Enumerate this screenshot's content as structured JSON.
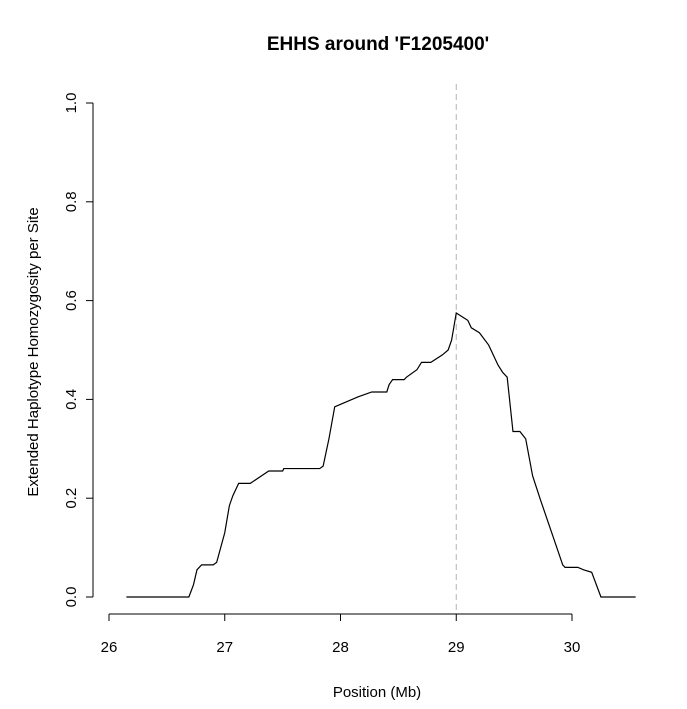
{
  "chart_data": {
    "type": "line",
    "title": "EHHS around 'F1205400'",
    "xlabel": "Position (Mb)",
    "ylabel": "Extended Haplotype Homozygosity per Site",
    "xlim": [
      26,
      30.55
    ],
    "ylim": [
      0,
      1
    ],
    "xticks": [
      26,
      27,
      28,
      29,
      30
    ],
    "yticks": [
      0.0,
      0.2,
      0.4,
      0.6,
      0.8,
      1.0
    ],
    "x_tick_labels": [
      "26",
      "27",
      "28",
      "29",
      "30"
    ],
    "y_tick_labels": [
      "0.0",
      "0.2",
      "0.4",
      "0.6",
      "0.8",
      "1.0"
    ],
    "grid": false,
    "legend": "none",
    "core_marker": {
      "x": 29.0,
      "style": "dashed",
      "color": "#b3b3b3"
    },
    "series": [
      {
        "color": "#000000",
        "x": [
          26.15,
          26.69,
          26.73,
          26.76,
          26.8,
          26.9,
          26.93,
          27.0,
          27.04,
          27.07,
          27.12,
          27.22,
          27.38,
          27.5,
          27.51,
          27.82,
          27.85,
          27.9,
          27.95,
          28.15,
          28.27,
          28.4,
          28.42,
          28.45,
          28.55,
          28.57,
          28.66,
          28.7,
          28.78,
          28.88,
          28.93,
          28.96,
          29.0,
          29.1,
          29.13,
          29.2,
          29.28,
          29.36,
          29.4,
          29.44,
          29.49,
          29.55,
          29.6,
          29.66,
          29.73,
          29.92,
          29.94,
          30.05,
          30.1,
          30.17,
          30.25,
          30.55
        ],
        "y": [
          0.0,
          0.0,
          0.025,
          0.055,
          0.065,
          0.065,
          0.07,
          0.13,
          0.185,
          0.205,
          0.23,
          0.23,
          0.255,
          0.255,
          0.26,
          0.26,
          0.265,
          0.32,
          0.385,
          0.405,
          0.415,
          0.415,
          0.43,
          0.44,
          0.44,
          0.445,
          0.46,
          0.475,
          0.475,
          0.49,
          0.5,
          0.52,
          0.575,
          0.56,
          0.545,
          0.535,
          0.51,
          0.47,
          0.455,
          0.445,
          0.335,
          0.335,
          0.32,
          0.245,
          0.195,
          0.065,
          0.06,
          0.06,
          0.055,
          0.05,
          0.0,
          0.0
        ]
      }
    ]
  }
}
